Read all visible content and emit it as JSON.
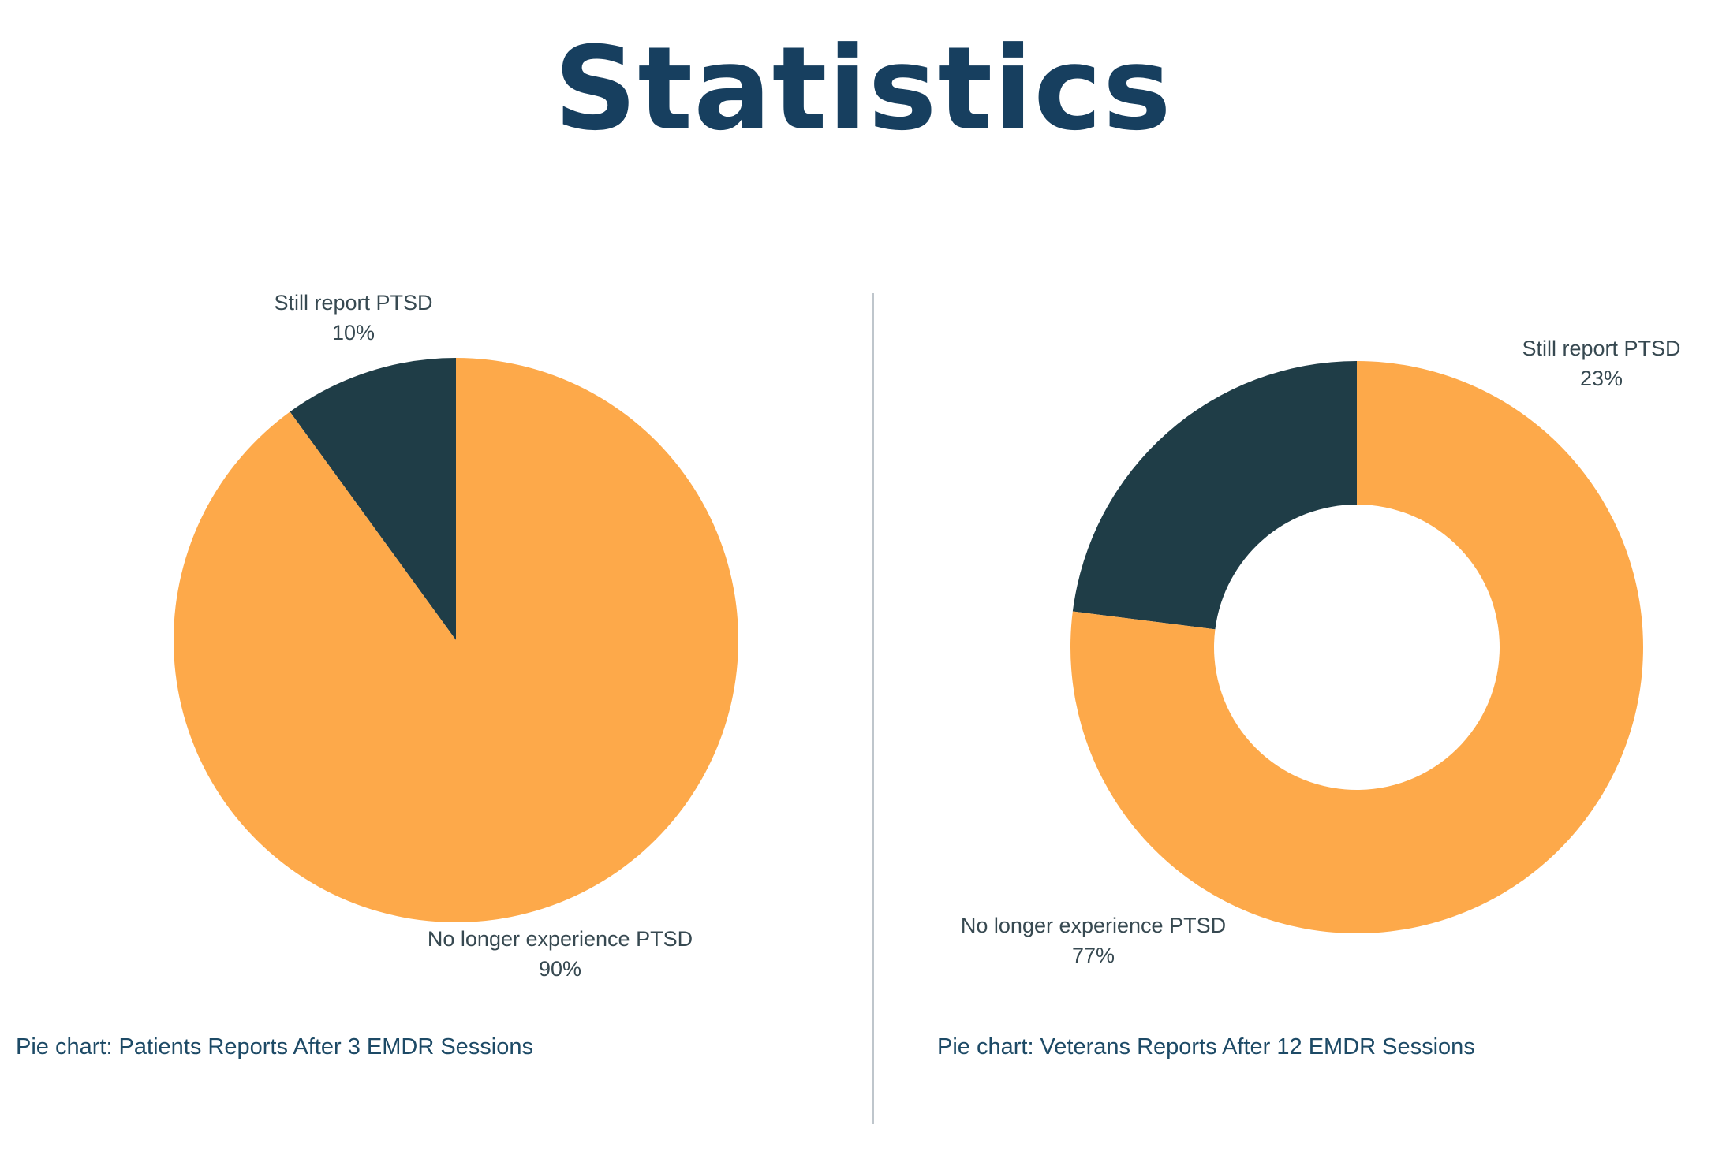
{
  "page": {
    "title": "Statistics",
    "title_color": "#173f5f"
  },
  "colors": {
    "orange": "#fda94a",
    "dark": "#1f3d47",
    "label_text": "#374951",
    "caption_text": "#1d4a66",
    "divider": "#bfc6cc",
    "background": "#ffffff"
  },
  "chart_data": [
    {
      "type": "pie",
      "title": "",
      "caption": "Pie chart: Patients Reports After 3 EMDR Sessions",
      "slices": [
        {
          "label": "Still report PTSD",
          "value": 10,
          "value_label": "10%",
          "color": "#1f3d47"
        },
        {
          "label": "No longer experience PTSD",
          "value": 90,
          "value_label": "90%",
          "color": "#fda94a"
        }
      ]
    },
    {
      "type": "pie",
      "title": "",
      "donut": true,
      "caption": "Pie chart: Veterans Reports After 12 EMDR Sessions",
      "slices": [
        {
          "label": "Still report PTSD",
          "value": 23,
          "value_label": "23%",
          "color": "#1f3d47"
        },
        {
          "label": "No longer experience PTSD",
          "value": 77,
          "value_label": "77%",
          "color": "#fda94a"
        }
      ]
    }
  ]
}
